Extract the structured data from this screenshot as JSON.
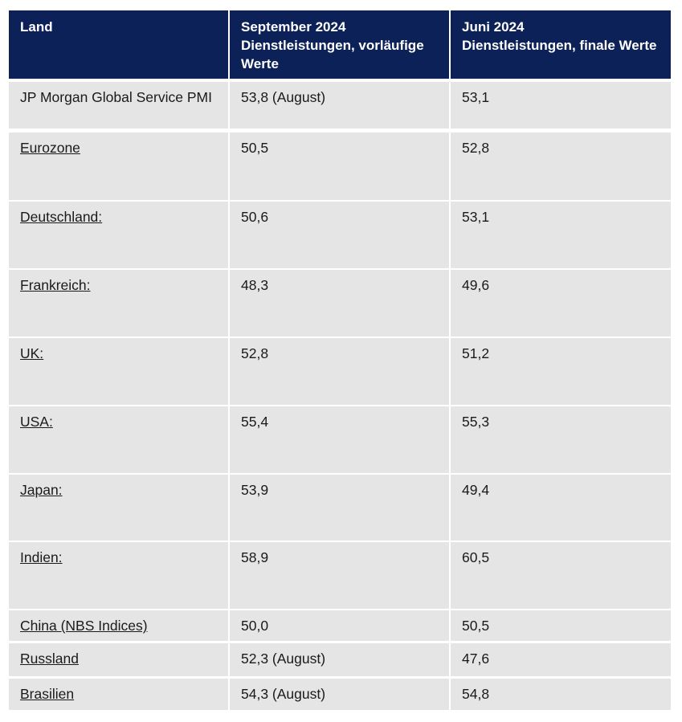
{
  "table": {
    "header": [
      {
        "title": "Land"
      },
      {
        "title": "September 2024",
        "subtitle": "Dienstleistungen, vorläufige Werte"
      },
      {
        "title": "Juni 2024",
        "subtitle": "Dienstleistungen, finale Werte"
      }
    ],
    "rows": [
      [
        "JP Morgan Global Service PMI",
        "53,8 (August)",
        "53,1"
      ],
      [
        "Eurozone",
        "50,5",
        "52,8"
      ],
      [
        "Deutschland:",
        "50,6",
        "53,1"
      ],
      [
        "Frankreich:",
        "48,3",
        "49,6"
      ],
      [
        "UK:",
        "52,8",
        "51,2"
      ],
      [
        "USA:",
        "55,4",
        "55,3"
      ],
      [
        "Japan:",
        "53,9",
        "49,4"
      ],
      [
        "Indien:",
        "58,9",
        "60,5"
      ],
      [
        "China (NBS Indices)",
        "50,0",
        "50,5"
      ],
      [
        "Russland",
        "52,3 (August)",
        "47,6"
      ],
      [
        "Brasilien",
        "54,3 (August)",
        "54,8"
      ]
    ]
  }
}
